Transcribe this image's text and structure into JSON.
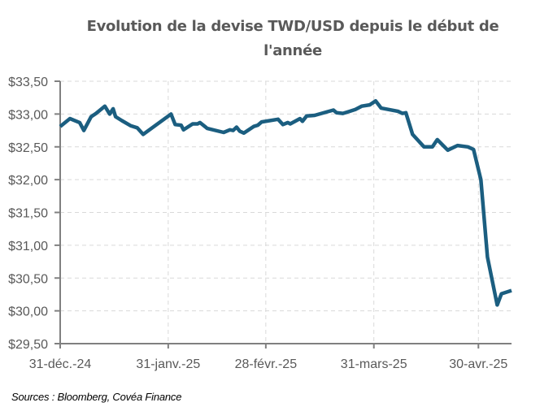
{
  "chart_data": {
    "type": "line",
    "title_line1": "Evolution de la devise TWD/USD depuis le début de",
    "title_line2": "l'année",
    "xlabel": "",
    "ylabel": "",
    "x_unit": "days since 31-déc.-24",
    "xlim": [
      0,
      129.5
    ],
    "ylim": [
      29.5,
      33.5
    ],
    "y_ticks": [
      29.5,
      30.0,
      30.5,
      31.0,
      31.5,
      32.0,
      32.5,
      33.0,
      33.5
    ],
    "y_tick_labels": [
      "$29,50",
      "$30,00",
      "$30,50",
      "$31,00",
      "$31,50",
      "$32,00",
      "$32,50",
      "$33,00",
      "$33,50"
    ],
    "x_ticks": [
      0,
      31,
      59,
      90,
      120
    ],
    "x_tick_labels": [
      "31-déc.-24",
      "31-janv.-25",
      "28-févr.-25",
      "31-mars-25",
      "30-avr.-25"
    ],
    "grid": true,
    "legend": "none",
    "line_color": "#1B5E80",
    "series": [
      {
        "name": "TWD/USD",
        "x": [
          0,
          2.8,
          5.6,
          6.8,
          8.9,
          10.3,
          12.8,
          14.2,
          15.2,
          15.9,
          17.7,
          20.3,
          22.1,
          23.8,
          31.8,
          33.0,
          34.7,
          35.4,
          38.0,
          39.4,
          40.1,
          42.2,
          46.9,
          48.7,
          49.6,
          50.6,
          51.5,
          52.7,
          55.5,
          56.7,
          57.8,
          62.5,
          63.9,
          65.3,
          66.0,
          68.8,
          69.5,
          70.7,
          73.0,
          76.3,
          78.4,
          79.3,
          81.1,
          83.0,
          84.7,
          86.5,
          88.8,
          90.5,
          92.1,
          97.0,
          98.2,
          99.2,
          101.1,
          104.4,
          106.8,
          108.2,
          111.2,
          114.0,
          117.0,
          118.6,
          120.7,
          122.6,
          125.4,
          126.6,
          129.5
        ],
        "values": [
          32.81,
          32.93,
          32.87,
          32.75,
          32.96,
          33.01,
          33.12,
          33.0,
          33.08,
          32.96,
          32.9,
          32.82,
          32.79,
          32.69,
          33.0,
          32.84,
          32.83,
          32.76,
          32.85,
          32.85,
          32.87,
          32.78,
          32.72,
          32.76,
          32.75,
          32.8,
          32.74,
          32.71,
          32.81,
          32.83,
          32.88,
          32.92,
          32.84,
          32.87,
          32.85,
          32.93,
          32.89,
          32.97,
          32.98,
          33.03,
          33.06,
          33.02,
          33.01,
          33.04,
          33.07,
          33.12,
          33.14,
          33.2,
          33.09,
          33.04,
          33.01,
          33.02,
          32.69,
          32.5,
          32.5,
          32.61,
          32.45,
          32.52,
          32.5,
          32.46,
          32.0,
          30.82,
          30.09,
          30.26,
          30.31
        ]
      }
    ],
    "source": "Sources : Bloomberg, Covéa Finance"
  }
}
